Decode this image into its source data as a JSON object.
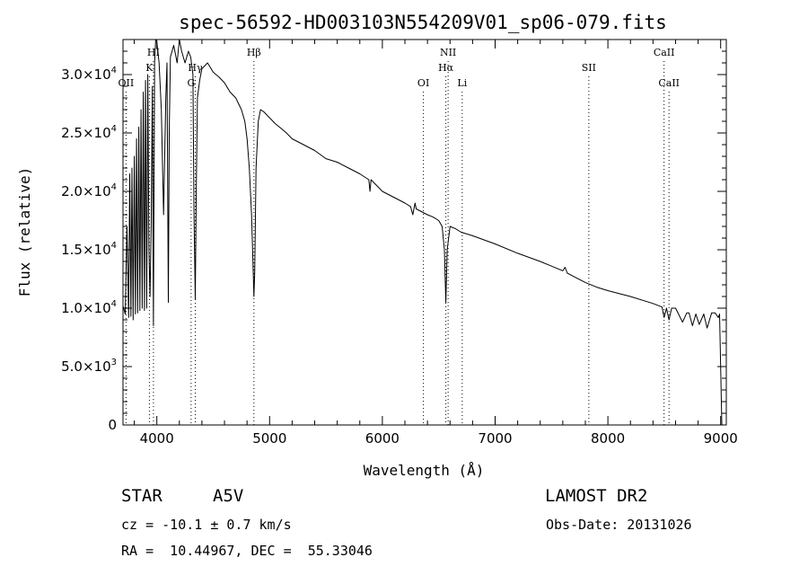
{
  "chart_data": {
    "type": "line",
    "title": "spec-56592-HD003103N554209V01_sp06-079.fits",
    "xlabel": "Wavelength (Å)",
    "ylabel": "Flux (relative)",
    "xlim": [
      3700,
      9050
    ],
    "ylim": [
      0,
      33000
    ],
    "x_ticks": [
      {
        "value": 4000,
        "label": "4000"
      },
      {
        "value": 5000,
        "label": "5000"
      },
      {
        "value": 6000,
        "label": "6000"
      },
      {
        "value": 7000,
        "label": "7000"
      },
      {
        "value": 8000,
        "label": "8000"
      },
      {
        "value": 9000,
        "label": "9000"
      }
    ],
    "y_ticks": [
      {
        "value": 0,
        "mant": "0",
        "exp": ""
      },
      {
        "value": 5000,
        "mant": "5.0×10",
        "exp": "3"
      },
      {
        "value": 10000,
        "mant": "1.0×10",
        "exp": "4"
      },
      {
        "value": 15000,
        "mant": "1.5×10",
        "exp": "4"
      },
      {
        "value": 20000,
        "mant": "2.0×10",
        "exp": "4"
      },
      {
        "value": 25000,
        "mant": "2.5×10",
        "exp": "4"
      },
      {
        "value": 30000,
        "mant": "3.0×10",
        "exp": "4"
      }
    ],
    "spectral_lines": [
      {
        "label": "OII",
        "x": 3727,
        "row": 3
      },
      {
        "label": "K",
        "x": 3934,
        "row": 2
      },
      {
        "label": "HI",
        "x": 3970,
        "row": 1
      },
      {
        "label": "G",
        "x": 4304,
        "row": 3
      },
      {
        "label": "Hγ",
        "x": 4341,
        "row": 2
      },
      {
        "label": "Hβ",
        "x": 4861,
        "row": 1
      },
      {
        "label": "OI",
        "x": 6364,
        "row": 3
      },
      {
        "label": "NII",
        "x": 6583,
        "row": 1
      },
      {
        "label": "Hα",
        "x": 6563,
        "row": 2
      },
      {
        "label": "Li",
        "x": 6708,
        "row": 3
      },
      {
        "label": "SII",
        "x": 7831,
        "row": 2
      },
      {
        "label": "CaII",
        "x": 8498,
        "row": 1
      },
      {
        "label": "CaII",
        "x": 8542,
        "row": 3
      }
    ],
    "series": [
      {
        "x": [
          3700,
          3720,
          3735,
          3750,
          3760,
          3770,
          3780,
          3790,
          3800,
          3810,
          3820,
          3830,
          3840,
          3850,
          3860,
          3870,
          3880,
          3890,
          3900,
          3910,
          3920,
          3930,
          3940,
          3950,
          3960,
          3970,
          3980,
          3990,
          4000,
          4020,
          4040,
          4060,
          4080,
          4090,
          4102,
          4110,
          4120,
          4150,
          4180,
          4200,
          4220,
          4250,
          4280,
          4300,
          4320,
          4330,
          4341,
          4350,
          4360,
          4380,
          4400,
          4450,
          4500,
          4550,
          4600,
          4650,
          4700,
          4750,
          4780,
          4800,
          4820,
          4840,
          4855,
          4861,
          4868,
          4880,
          4900,
          4920,
          4950,
          5000,
          5050,
          5100,
          5150,
          5200,
          5300,
          5400,
          5500,
          5600,
          5700,
          5800,
          5880,
          5890,
          5900,
          5950,
          6000,
          6100,
          6200,
          6250,
          6270,
          6290,
          6300,
          6400,
          6450,
          6500,
          6530,
          6550,
          6563,
          6575,
          6600,
          6650,
          6700,
          6800,
          7000,
          7200,
          7400,
          7500,
          7600,
          7620,
          7640,
          7700,
          7800,
          7900,
          8000,
          8200,
          8400,
          8480,
          8498,
          8520,
          8542,
          8565,
          8600,
          8662,
          8700,
          8720,
          8750,
          8780,
          8810,
          8850,
          8880,
          8920,
          8950,
          8980,
          8990,
          9000,
          9010
        ],
        "y": [
          10200,
          9500,
          17000,
          9200,
          21500,
          9300,
          22000,
          9000,
          23000,
          9500,
          24500,
          9600,
          25500,
          9800,
          27000,
          10000,
          28500,
          9800,
          29500,
          10000,
          30000,
          15000,
          11000,
          17000,
          29000,
          8500,
          31000,
          33000,
          32800,
          31000,
          27000,
          18000,
          28000,
          31000,
          10500,
          25000,
          31500,
          32500,
          31000,
          33000,
          32000,
          31000,
          32000,
          31500,
          30000,
          18000,
          10800,
          20000,
          28000,
          29500,
          30500,
          31000,
          30200,
          29800,
          29300,
          28500,
          28000,
          27000,
          26000,
          24500,
          22000,
          18000,
          13000,
          11000,
          13000,
          22000,
          26000,
          27000,
          26800,
          26300,
          25800,
          25400,
          25000,
          24500,
          24000,
          23500,
          22800,
          22500,
          22000,
          21500,
          21000,
          20000,
          21000,
          20500,
          20000,
          19500,
          19000,
          18700,
          18000,
          19000,
          18500,
          18000,
          17800,
          17500,
          17000,
          15000,
          10500,
          15000,
          17000,
          16800,
          16500,
          16200,
          15500,
          14700,
          14000,
          13600,
          13200,
          13500,
          13000,
          12700,
          12200,
          11800,
          11500,
          11000,
          10400,
          10100,
          9200,
          10000,
          9000,
          10000,
          10000,
          8800,
          9600,
          9600,
          8500,
          9500,
          8600,
          9500,
          8300,
          9600,
          9600,
          9200,
          9500,
          5000,
          0
        ]
      }
    ]
  },
  "info": {
    "object_type": "STAR",
    "subclass": "A5V",
    "survey": "LAMOST DR2",
    "redshift": "cz = -10.1 ± 0.7 km/s",
    "obs_date": "Obs-Date: 20131026",
    "coords": "RA =  10.44967, DEC =  55.33046"
  }
}
